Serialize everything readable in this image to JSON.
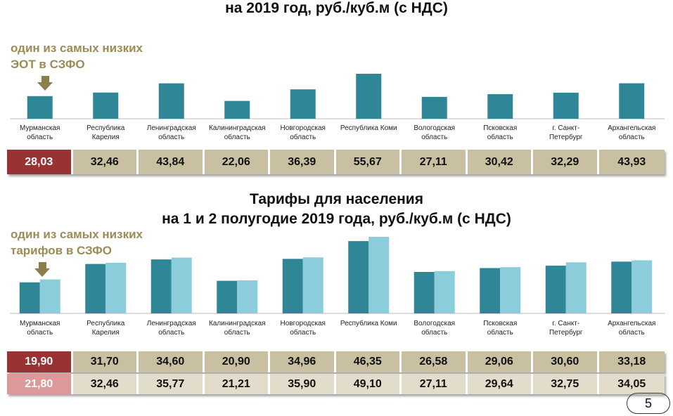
{
  "title_top": "на 2019 год, руб./куб.м (с НДС)",
  "title_bottom_line1": "Тарифы для населения",
  "title_bottom_line2": "на 1 и 2 полугодие 2019 года, руб./куб.м (с НДС)",
  "note_top": [
    "один из самых низких",
    "ЭОТ в СЗФО"
  ],
  "note_bottom": [
    "один из самых низких",
    "тарифов в СЗФО"
  ],
  "page_number": "5",
  "colors": {
    "bar_dark": "#2e8696",
    "bar_light": "#8ccddc",
    "highlight": "#993333",
    "highlight_light": "#dd9999",
    "cell": "#c8c0a0",
    "cell_light": "#e2dccb",
    "note": "#9b8c56"
  },
  "regions": [
    [
      "Мурманская",
      "область"
    ],
    [
      "Республика",
      "Карелия"
    ],
    [
      "Ленинградская",
      "область"
    ],
    [
      "Калининградская",
      "область"
    ],
    [
      "Новгородская",
      "область"
    ],
    [
      "Республика Коми",
      ""
    ],
    [
      "Вологодская",
      "область"
    ],
    [
      "Псковская",
      "область"
    ],
    [
      "г. Санкт-",
      "Петербург"
    ],
    [
      "Архангельская",
      "область"
    ]
  ],
  "chart_data": [
    {
      "type": "bar",
      "title": "на 2019 год, руб./куб.м (с НДС)",
      "categories": [
        "Мурманская область",
        "Республика Карелия",
        "Ленинградская область",
        "Калининградская область",
        "Новгородская область",
        "Республика Коми",
        "Вологодская область",
        "Псковская область",
        "г. Санкт-Петербург",
        "Архангельская область"
      ],
      "values": [
        28.03,
        32.46,
        43.84,
        22.06,
        36.39,
        55.67,
        27.11,
        30.42,
        32.29,
        43.93
      ],
      "value_labels": [
        "28,03",
        "32,46",
        "43,84",
        "22,06",
        "36,39",
        "55,67",
        "27,11",
        "30,42",
        "32,29",
        "43,93"
      ]
    },
    {
      "type": "bar",
      "title": "Тарифы для населения на 1 и 2 полугодие 2019 года, руб./куб.м (с НДС)",
      "categories": [
        "Мурманская область",
        "Республика Карелия",
        "Ленинградская область",
        "Калининградская область",
        "Новгородская область",
        "Республика Коми",
        "Вологодская область",
        "Псковская область",
        "г. Санкт-Петербург",
        "Архангельская область"
      ],
      "series": [
        {
          "values": [
            19.9,
            31.7,
            34.6,
            20.9,
            34.96,
            46.35,
            26.58,
            29.06,
            30.6,
            33.18
          ],
          "value_labels": [
            "19,90",
            "31,70",
            "34,60",
            "20,90",
            "34,96",
            "46,35",
            "26,58",
            "29,06",
            "30,60",
            "33,18"
          ]
        },
        {
          "values": [
            21.8,
            32.46,
            35.77,
            21.21,
            35.9,
            49.1,
            27.11,
            29.64,
            32.75,
            34.05
          ],
          "value_labels": [
            "21,80",
            "32,46",
            "35,77",
            "21,21",
            "35,90",
            "49,10",
            "27,11",
            "29,64",
            "32,75",
            "34,05"
          ]
        }
      ]
    }
  ]
}
